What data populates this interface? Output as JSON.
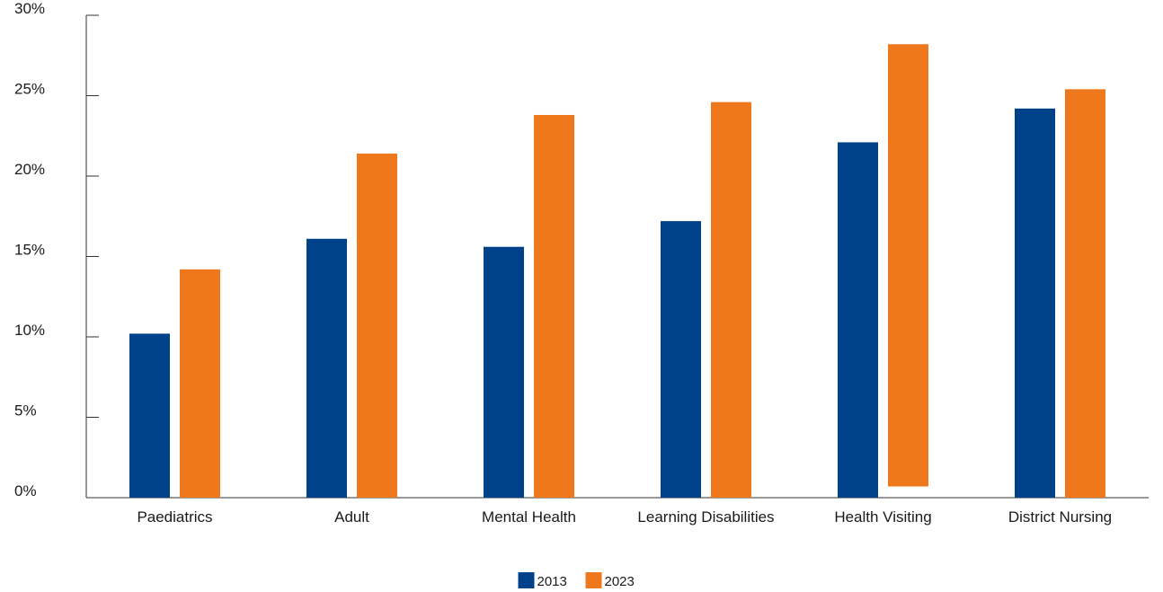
{
  "chart_data": {
    "type": "bar",
    "categories": [
      "Paediatrics",
      "Adult",
      "Mental Health",
      "Learning Disabilities",
      "Health Visiting",
      "District Nursing"
    ],
    "series": [
      {
        "name": "2013",
        "color": "#00428A",
        "values": [
          10.2,
          16.1,
          15.6,
          17.2,
          22.1,
          24.2
        ]
      },
      {
        "name": "2023",
        "color": "#EE781B",
        "values": [
          14.2,
          21.4,
          23.8,
          24.6,
          28.2,
          25.4
        ]
      }
    ],
    "floating_bars": [
      {
        "series": "2023",
        "category": "Health Visiting",
        "base": 0.7
      }
    ],
    "ylim": [
      0,
      30
    ],
    "yticks": [
      0,
      5,
      10,
      15,
      20,
      25,
      30
    ],
    "ytick_labels": [
      "0%",
      "5%",
      "10%",
      "15%",
      "20%",
      "25%",
      "30%"
    ],
    "title": "",
    "xlabel": "",
    "ylabel": "",
    "grid": false,
    "legend_position": "bottom-center"
  }
}
